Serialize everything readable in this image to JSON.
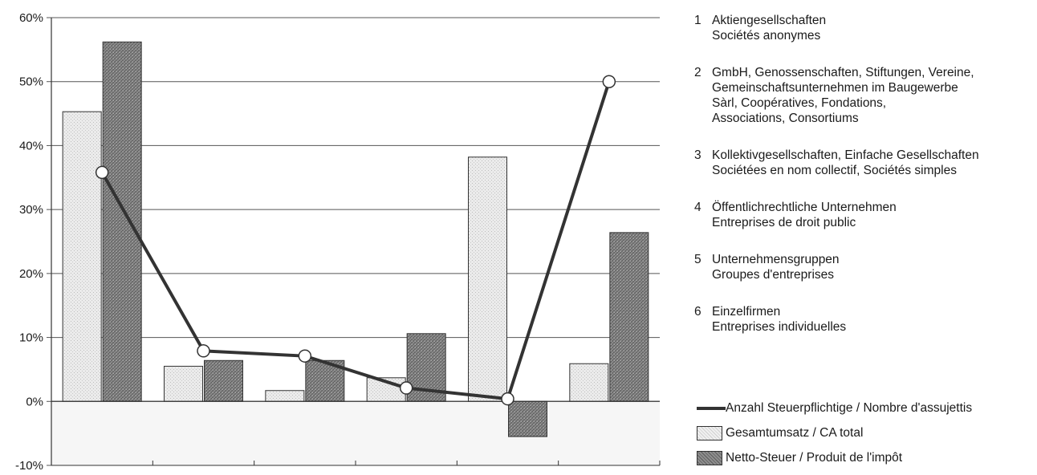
{
  "chart_data": {
    "type": "bar",
    "categories": [
      "1",
      "2",
      "3",
      "4",
      "5",
      "6"
    ],
    "ylim": [
      -10,
      60
    ],
    "yticks": [
      -10,
      0,
      10,
      20,
      30,
      40,
      50,
      60
    ],
    "ytick_labels": [
      "-10%",
      "0%",
      "10%",
      "20%",
      "30%",
      "40%",
      "50%",
      "60%"
    ],
    "grid": true,
    "series": [
      {
        "name": "Gesamtumsatz / CA total",
        "kind": "bar",
        "color": "#e4e4e4",
        "values": [
          45.3,
          5.5,
          1.7,
          3.7,
          38.2,
          5.9
        ]
      },
      {
        "name": "Netto-Steuer / Produit de l'impôt",
        "kind": "bar",
        "color": "#8c8c8c",
        "values": [
          56.2,
          6.4,
          6.4,
          10.6,
          -5.5,
          26.4
        ]
      },
      {
        "name": "Anzahl Steuerpflichtige / Nombre d'assujettis",
        "kind": "line",
        "color": "#333333",
        "values": [
          35.8,
          7.9,
          7.1,
          2.1,
          0.4,
          50.0
        ]
      }
    ]
  },
  "legend": {
    "categories": [
      {
        "num": "1",
        "lines": [
          "Aktiengesellschaften",
          "Sociétés anonymes"
        ]
      },
      {
        "num": "2",
        "lines": [
          "GmbH, Genossenschaften, Stiftungen, Vereine,",
          "Gemeinschaftsunternehmen im Baugewerbe",
          "Sàrl, Coopératives, Fondations,",
          "Associations, Consortiums"
        ]
      },
      {
        "num": "3",
        "lines": [
          "Kollektivgesellschaften, Einfache Gesellschaften",
          "Sociétées en nom collectif, Sociétés simples"
        ]
      },
      {
        "num": "4",
        "lines": [
          "Öffentlichrechtliche Unternehmen",
          "Entreprises de droit public"
        ]
      },
      {
        "num": "5",
        "lines": [
          "Unternehmensgruppen",
          "Groupes d'entreprises"
        ]
      },
      {
        "num": "6",
        "lines": [
          "Einzelfirmen",
          "Entreprises individuelles"
        ]
      }
    ]
  }
}
